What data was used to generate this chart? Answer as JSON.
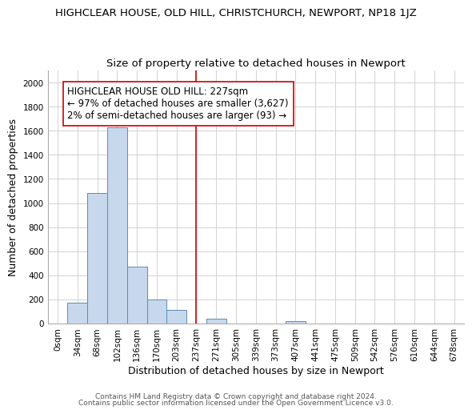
{
  "title": "HIGHCLEAR HOUSE, OLD HILL, CHRISTCHURCH, NEWPORT, NP18 1JZ",
  "subtitle": "Size of property relative to detached houses in Newport",
  "xlabel": "Distribution of detached houses by size in Newport",
  "ylabel": "Number of detached properties",
  "categories": [
    "0sqm",
    "34sqm",
    "68sqm",
    "102sqm",
    "136sqm",
    "170sqm",
    "203sqm",
    "237sqm",
    "271sqm",
    "305sqm",
    "339sqm",
    "373sqm",
    "407sqm",
    "441sqm",
    "475sqm",
    "509sqm",
    "542sqm",
    "576sqm",
    "610sqm",
    "644sqm",
    "678sqm"
  ],
  "values": [
    0,
    170,
    1080,
    1630,
    470,
    200,
    110,
    0,
    40,
    0,
    0,
    0,
    20,
    0,
    0,
    0,
    0,
    0,
    0,
    0,
    0
  ],
  "bar_color": "#c8d8ec",
  "bar_edge_color": "#5b8ab5",
  "vline_x_index": 7,
  "vline_color": "#cc0000",
  "annotation_line1": "HIGHCLEAR HOUSE OLD HILL: 227sqm",
  "annotation_line2": "← 97% of detached houses are smaller (3,627)",
  "annotation_line3": "2% of semi-detached houses are larger (93) →",
  "annotation_box_edge": "#cc0000",
  "annotation_box_face": "#ffffff",
  "ylim": [
    0,
    2100
  ],
  "yticks": [
    0,
    200,
    400,
    600,
    800,
    1000,
    1200,
    1400,
    1600,
    1800,
    2000
  ],
  "footer1": "Contains HM Land Registry data © Crown copyright and database right 2024.",
  "footer2": "Contains public sector information licensed under the Open Government Licence v3.0.",
  "bg_color": "#ffffff",
  "plot_bg_color": "#ffffff",
  "title_fontsize": 9.5,
  "subtitle_fontsize": 9.5,
  "axis_label_fontsize": 9,
  "annotation_fontsize": 8.5,
  "tick_fontsize": 7.5,
  "footer_fontsize": 6.5
}
